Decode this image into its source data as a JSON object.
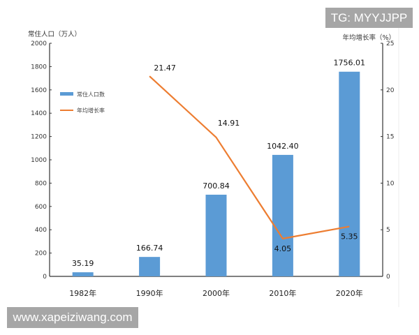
{
  "chart_data": {
    "type": "bar+line",
    "categories": [
      "1982年",
      "1990年",
      "2000年",
      "2010年",
      "2020年"
    ],
    "series": [
      {
        "name": "常住人口数",
        "type": "bar",
        "axis": "left",
        "color": "#5b9bd5",
        "values": [
          35.19,
          166.74,
          700.84,
          1042.4,
          1756.01
        ],
        "labels": [
          "35.19",
          "166.74",
          "700.84",
          "1042.40",
          "1756.01"
        ]
      },
      {
        "name": "年均增长率",
        "type": "line",
        "axis": "right",
        "color": "#ed7d31",
        "x": [
          "1990年",
          "2000年",
          "2010年",
          "2020年"
        ],
        "values": [
          21.47,
          14.91,
          4.05,
          5.35
        ],
        "labels": [
          "21.47",
          "14.91",
          "4.05",
          "5.35"
        ]
      }
    ],
    "ylabel": "常住人口（万人）",
    "y2label": "年均增长率（%）",
    "ylim": [
      0,
      2000
    ],
    "y2lim": [
      0,
      25
    ],
    "yticks": [
      "0",
      "200",
      "400",
      "600",
      "800",
      "1000",
      "1200",
      "1400",
      "1600",
      "1800",
      "2000"
    ],
    "y2ticks": [
      "0",
      "5",
      "10",
      "15",
      "20",
      "25"
    ],
    "legend_position": "top-left",
    "grid": false
  },
  "watermarks": {
    "tg": "TG: MYYJJPP",
    "site": "www.xapeiziwang.com"
  }
}
